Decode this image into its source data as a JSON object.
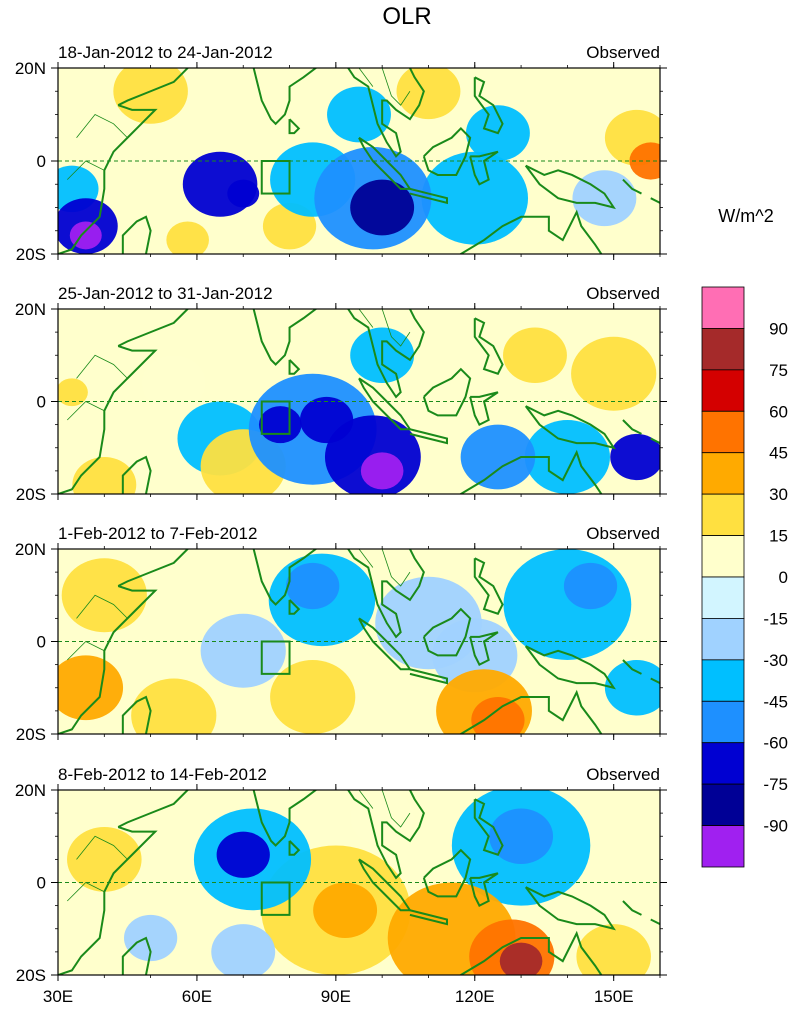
{
  "title": "OLR",
  "units_label": "W/m^2",
  "chart_data": {
    "type": "heatmap",
    "title": "OLR",
    "colorbar_label": "W/m^2",
    "x_ticks": [
      "30E",
      "60E",
      "90E",
      "120E",
      "150E"
    ],
    "x_tick_values": [
      30,
      60,
      90,
      120,
      150
    ],
    "xlim": [
      30,
      160
    ],
    "y_ticks": [
      "20N",
      "0",
      "20S"
    ],
    "y_tick_values": [
      20,
      0,
      -20
    ],
    "ylim": [
      -20,
      20
    ],
    "box_region": {
      "lon": [
        74,
        80
      ],
      "lat": [
        -7,
        0
      ]
    },
    "colorbar": {
      "tick_labels": [
        "90",
        "75",
        "60",
        "45",
        "30",
        "15",
        "0",
        "-15",
        "-30",
        "-45",
        "-60",
        "-75",
        "-90"
      ],
      "colors": [
        "#ff6eb4",
        "#a52a2a",
        "#d40000",
        "#ff7300",
        "#ffaa00",
        "#ffe040",
        "#ffffcc",
        "#d2f5ff",
        "#a0d2ff",
        "#00bfff",
        "#1e90ff",
        "#0000d2",
        "#000096",
        "#a020f0"
      ]
    },
    "panels": [
      {
        "label": "18-Jan-2012 to 24-Jan-2012",
        "tag": "Observed",
        "anomalies": [
          {
            "lon": 36,
            "lat": -16,
            "value": -90,
            "r": 3
          },
          {
            "lon": 36,
            "lat": -14,
            "value": -60,
            "r": 6
          },
          {
            "lon": 33,
            "lat": -6,
            "value": -30,
            "r": 5
          },
          {
            "lon": 65,
            "lat": -5,
            "value": -65,
            "r": 7
          },
          {
            "lon": 70,
            "lat": -7,
            "value": -70,
            "r": 3
          },
          {
            "lon": 100,
            "lat": -10,
            "value": -80,
            "r": 6
          },
          {
            "lon": 98,
            "lat": -8,
            "value": -55,
            "r": 11
          },
          {
            "lon": 85,
            "lat": -4,
            "value": -40,
            "r": 8
          },
          {
            "lon": 120,
            "lat": -8,
            "value": -40,
            "r": 10
          },
          {
            "lon": 95,
            "lat": 10,
            "value": -30,
            "r": 6
          },
          {
            "lon": 125,
            "lat": 6,
            "value": -35,
            "r": 6
          },
          {
            "lon": 148,
            "lat": -8,
            "value": -20,
            "r": 6
          },
          {
            "lon": 158,
            "lat": 0,
            "value": 50,
            "r": 4
          },
          {
            "lon": 155,
            "lat": 5,
            "value": 30,
            "r": 6
          },
          {
            "lon": 50,
            "lat": 15,
            "value": 20,
            "r": 7
          },
          {
            "lon": 110,
            "lat": 15,
            "value": 20,
            "r": 6
          },
          {
            "lon": 80,
            "lat": -14,
            "value": 20,
            "r": 5
          },
          {
            "lon": 58,
            "lat": -17,
            "value": 20,
            "r": 4
          }
        ]
      },
      {
        "label": "25-Jan-2012 to 31-Jan-2012",
        "tag": "Observed",
        "anomalies": [
          {
            "lon": 100,
            "lat": -15,
            "value": -90,
            "r": 4
          },
          {
            "lon": 98,
            "lat": -12,
            "value": -65,
            "r": 9
          },
          {
            "lon": 88,
            "lat": -4,
            "value": -70,
            "r": 5
          },
          {
            "lon": 85,
            "lat": -6,
            "value": -45,
            "r": 12
          },
          {
            "lon": 78,
            "lat": -5,
            "value": -60,
            "r": 4
          },
          {
            "lon": 65,
            "lat": -8,
            "value": -30,
            "r": 8
          },
          {
            "lon": 100,
            "lat": 10,
            "value": -35,
            "r": 6
          },
          {
            "lon": 125,
            "lat": -12,
            "value": -55,
            "r": 7
          },
          {
            "lon": 155,
            "lat": -12,
            "value": -60,
            "r": 5
          },
          {
            "lon": 140,
            "lat": -12,
            "value": -40,
            "r": 8
          },
          {
            "lon": 150,
            "lat": 6,
            "value": 25,
            "r": 8
          },
          {
            "lon": 133,
            "lat": 10,
            "value": 30,
            "r": 6
          },
          {
            "lon": 70,
            "lat": -14,
            "value": 30,
            "r": 8
          },
          {
            "lon": 55,
            "lat": 4,
            "value": 15,
            "r": 6
          },
          {
            "lon": 40,
            "lat": -18,
            "value": 20,
            "r": 6
          },
          {
            "lon": 33,
            "lat": 2,
            "value": 25,
            "r": 3
          }
        ]
      },
      {
        "label": "1-Feb-2012 to 7-Feb-2012",
        "tag": "Observed",
        "anomalies": [
          {
            "lon": 36,
            "lat": -10,
            "value": 45,
            "r": 7
          },
          {
            "lon": 40,
            "lat": 10,
            "value": 20,
            "r": 8
          },
          {
            "lon": 55,
            "lat": -16,
            "value": 20,
            "r": 8
          },
          {
            "lon": 85,
            "lat": -12,
            "value": 25,
            "r": 8
          },
          {
            "lon": 125,
            "lat": -17,
            "value": 55,
            "r": 5
          },
          {
            "lon": 122,
            "lat": -15,
            "value": 35,
            "r": 9
          },
          {
            "lon": 85,
            "lat": 12,
            "value": -45,
            "r": 5
          },
          {
            "lon": 87,
            "lat": 9,
            "value": -30,
            "r": 10
          },
          {
            "lon": 70,
            "lat": -2,
            "value": -25,
            "r": 8
          },
          {
            "lon": 145,
            "lat": 12,
            "value": -45,
            "r": 5
          },
          {
            "lon": 140,
            "lat": 8,
            "value": -30,
            "r": 12
          },
          {
            "lon": 155,
            "lat": -10,
            "value": -40,
            "r": 6
          },
          {
            "lon": 110,
            "lat": 4,
            "value": -20,
            "r": 10
          },
          {
            "lon": 120,
            "lat": -3,
            "value": -15,
            "r": 8
          }
        ]
      },
      {
        "label": "8-Feb-2012 to 14-Feb-2012",
        "tag": "Observed",
        "anomalies": [
          {
            "lon": 130,
            "lat": -17,
            "value": 80,
            "r": 4
          },
          {
            "lon": 128,
            "lat": -16,
            "value": 60,
            "r": 8
          },
          {
            "lon": 115,
            "lat": -12,
            "value": 40,
            "r": 12
          },
          {
            "lon": 92,
            "lat": -6,
            "value": 40,
            "r": 6
          },
          {
            "lon": 90,
            "lat": -6,
            "value": 25,
            "r": 14
          },
          {
            "lon": 150,
            "lat": -16,
            "value": 30,
            "r": 7
          },
          {
            "lon": 40,
            "lat": 5,
            "value": 25,
            "r": 7
          },
          {
            "lon": 70,
            "lat": 6,
            "value": -65,
            "r": 5
          },
          {
            "lon": 72,
            "lat": 5,
            "value": -40,
            "r": 11
          },
          {
            "lon": 130,
            "lat": 10,
            "value": -50,
            "r": 6
          },
          {
            "lon": 130,
            "lat": 8,
            "value": -30,
            "r": 13
          },
          {
            "lon": 70,
            "lat": -15,
            "value": -25,
            "r": 6
          },
          {
            "lon": 50,
            "lat": -12,
            "value": -20,
            "r": 5
          },
          {
            "lon": 100,
            "lat": 14,
            "value": 15,
            "r": 6
          }
        ]
      }
    ]
  }
}
